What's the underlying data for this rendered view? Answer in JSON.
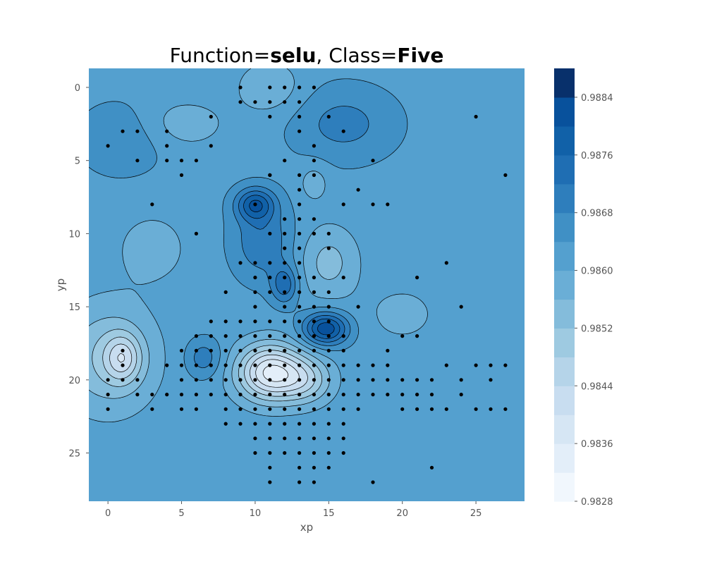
{
  "chart_data": {
    "type": "contour",
    "title": {
      "prefix": "Function=",
      "function": "selu",
      "separator": ", Class=",
      "class": "Five"
    },
    "xlabel": "xp",
    "ylabel": "yp",
    "xlim": [
      -1.3,
      28.3
    ],
    "ylim": [
      28.3,
      -1.3
    ],
    "x_ticks": [
      0,
      5,
      10,
      15,
      20,
      25
    ],
    "y_ticks": [
      0,
      5,
      10,
      15,
      20,
      25
    ],
    "grid": false,
    "colormap": "Blues",
    "colorbar": {
      "min": 0.9828,
      "max": 0.9888,
      "levels": [
        0.9828,
        0.9832,
        0.9836,
        0.984,
        0.9844,
        0.9848,
        0.9852,
        0.9856,
        0.986,
        0.9864,
        0.9868,
        0.9872,
        0.9876,
        0.988,
        0.9884,
        0.9888
      ],
      "tick_values": [
        0.9828,
        0.9836,
        0.9844,
        0.9852,
        0.986,
        0.9868,
        0.9876,
        0.9884
      ],
      "tick_labels": [
        "0.9828",
        "0.9836",
        "0.9844",
        "0.9852",
        "0.9860",
        "0.9868",
        "0.9876",
        "0.9884"
      ],
      "colors": [
        "#f1f7fd",
        "#e3eef9",
        "#d6e6f4",
        "#c8ddf0",
        "#b5d4e9",
        "#9ecae1",
        "#84bcdb",
        "#6aaed6",
        "#54a0cf",
        "#4090c5",
        "#2e7ebc",
        "#1f6eb3",
        "#1161a8",
        "#08519c",
        "#08306b"
      ]
    },
    "baseline_value": 0.98625,
    "features": [
      {
        "x": 11,
        "y": 0,
        "value": 0.98565,
        "sx": 2.2,
        "sy": 1.8
      },
      {
        "x": 5,
        "y": 2.5,
        "value": 0.98575,
        "sx": 3,
        "sy": 1.7
      },
      {
        "x": 16,
        "y": 2.5,
        "value": 0.98695,
        "sx": 3.5,
        "sy": 2.5
      },
      {
        "x": 0,
        "y": 18.5,
        "value": 0.98515,
        "sx": 3.2,
        "sy": 3.6
      },
      {
        "x": 1,
        "y": 18.5,
        "value": 0.98495,
        "sx": 1.2,
        "sy": 1.6
      },
      {
        "x": 11,
        "y": 19.5,
        "value": 0.98355,
        "sx": 2.2,
        "sy": 1.9
      },
      {
        "x": 13.5,
        "y": 20,
        "value": 0.98505,
        "sx": 1.8,
        "sy": 1.6
      },
      {
        "x": 14.8,
        "y": 16.5,
        "value": 0.98835,
        "sx": 1.5,
        "sy": 1.1
      },
      {
        "x": 10,
        "y": 8,
        "value": 0.98785,
        "sx": 1.3,
        "sy": 1.1
      },
      {
        "x": 10.5,
        "y": 10.5,
        "value": 0.98715,
        "sx": 2,
        "sy": 2.6
      },
      {
        "x": 12,
        "y": 13.5,
        "value": 0.98745,
        "sx": 0.9,
        "sy": 1.3
      },
      {
        "x": 15,
        "y": 12,
        "value": 0.98545,
        "sx": 2,
        "sy": 2.5
      },
      {
        "x": 14,
        "y": 6.5,
        "value": 0.98575,
        "sx": 1,
        "sy": 1.3
      },
      {
        "x": 6.5,
        "y": 18.5,
        "value": 0.98705,
        "sx": 1.2,
        "sy": 1.3
      },
      {
        "x": 20,
        "y": 15.5,
        "value": 0.98585,
        "sx": 2.5,
        "sy": 2
      },
      {
        "x": 3,
        "y": 11,
        "value": 0.9858,
        "sx": 2.5,
        "sy": 2.5
      },
      {
        "x": 1,
        "y": 3.5,
        "value": 0.98675,
        "sx": 3,
        "sy": 2.5
      }
    ],
    "points": [
      [
        0,
        20
      ],
      [
        0,
        21
      ],
      [
        0,
        22
      ],
      [
        1,
        20
      ],
      [
        1,
        18
      ],
      [
        1,
        19
      ],
      [
        2,
        20
      ],
      [
        2,
        21
      ],
      [
        3,
        21
      ],
      [
        3,
        22
      ],
      [
        4,
        19
      ],
      [
        4,
        21
      ],
      [
        5,
        18
      ],
      [
        5,
        19
      ],
      [
        5,
        20
      ],
      [
        5,
        21
      ],
      [
        5,
        22
      ],
      [
        6,
        17
      ],
      [
        6,
        18
      ],
      [
        6,
        19
      ],
      [
        6,
        20
      ],
      [
        6,
        21
      ],
      [
        6,
        22
      ],
      [
        7,
        16
      ],
      [
        7,
        17
      ],
      [
        7,
        18
      ],
      [
        7,
        19
      ],
      [
        7,
        20
      ],
      [
        7,
        21
      ],
      [
        8,
        16
      ],
      [
        8,
        17
      ],
      [
        8,
        18
      ],
      [
        8,
        19
      ],
      [
        8,
        20
      ],
      [
        8,
        21
      ],
      [
        8,
        22
      ],
      [
        8,
        23
      ],
      [
        9,
        16
      ],
      [
        9,
        17
      ],
      [
        9,
        18
      ],
      [
        9,
        19
      ],
      [
        9,
        20
      ],
      [
        9,
        21
      ],
      [
        9,
        22
      ],
      [
        9,
        23
      ],
      [
        10,
        16
      ],
      [
        10,
        17
      ],
      [
        10,
        18
      ],
      [
        10,
        19
      ],
      [
        10,
        20
      ],
      [
        10,
        21
      ],
      [
        10,
        22
      ],
      [
        10,
        23
      ],
      [
        10,
        24
      ],
      [
        10,
        25
      ],
      [
        11,
        16
      ],
      [
        11,
        17
      ],
      [
        11,
        18
      ],
      [
        11,
        19
      ],
      [
        11,
        20
      ],
      [
        11,
        21
      ],
      [
        11,
        22
      ],
      [
        11,
        23
      ],
      [
        11,
        24
      ],
      [
        11,
        25
      ],
      [
        11,
        26
      ],
      [
        11,
        27
      ],
      [
        12,
        16
      ],
      [
        12,
        17
      ],
      [
        12,
        18
      ],
      [
        12,
        19
      ],
      [
        12,
        20
      ],
      [
        12,
        21
      ],
      [
        12,
        22
      ],
      [
        12,
        23
      ],
      [
        12,
        24
      ],
      [
        12,
        25
      ],
      [
        13,
        16
      ],
      [
        13,
        17
      ],
      [
        13,
        18
      ],
      [
        13,
        19
      ],
      [
        13,
        20
      ],
      [
        13,
        21
      ],
      [
        13,
        22
      ],
      [
        13,
        23
      ],
      [
        13,
        24
      ],
      [
        13,
        25
      ],
      [
        13,
        26
      ],
      [
        13,
        27
      ],
      [
        14,
        16
      ],
      [
        14,
        17
      ],
      [
        14,
        18
      ],
      [
        14,
        19
      ],
      [
        14,
        20
      ],
      [
        14,
        21
      ],
      [
        14,
        22
      ],
      [
        14,
        23
      ],
      [
        14,
        24
      ],
      [
        14,
        25
      ],
      [
        14,
        26
      ],
      [
        14,
        27
      ],
      [
        15,
        16
      ],
      [
        15,
        17
      ],
      [
        15,
        18
      ],
      [
        15,
        19
      ],
      [
        15,
        20
      ],
      [
        15,
        21
      ],
      [
        15,
        22
      ],
      [
        15,
        23
      ],
      [
        15,
        24
      ],
      [
        15,
        25
      ],
      [
        15,
        26
      ],
      [
        16,
        17
      ],
      [
        16,
        18
      ],
      [
        16,
        19
      ],
      [
        16,
        20
      ],
      [
        16,
        21
      ],
      [
        16,
        22
      ],
      [
        16,
        23
      ],
      [
        16,
        24
      ],
      [
        16,
        25
      ],
      [
        17,
        19
      ],
      [
        17,
        20
      ],
      [
        17,
        21
      ],
      [
        17,
        22
      ],
      [
        18,
        19
      ],
      [
        18,
        20
      ],
      [
        18,
        21
      ],
      [
        18,
        27
      ],
      [
        19,
        18
      ],
      [
        19,
        19
      ],
      [
        19,
        20
      ],
      [
        19,
        21
      ],
      [
        20,
        17
      ],
      [
        20,
        20
      ],
      [
        20,
        21
      ],
      [
        20,
        22
      ],
      [
        21,
        17
      ],
      [
        21,
        20
      ],
      [
        21,
        21
      ],
      [
        21,
        22
      ],
      [
        22,
        20
      ],
      [
        22,
        21
      ],
      [
        22,
        22
      ],
      [
        22,
        26
      ],
      [
        23,
        19
      ],
      [
        23,
        22
      ],
      [
        24,
        20
      ],
      [
        24,
        21
      ],
      [
        25,
        19
      ],
      [
        25,
        22
      ],
      [
        26,
        19
      ],
      [
        26,
        20
      ],
      [
        26,
        22
      ],
      [
        27,
        19
      ],
      [
        27,
        22
      ],
      [
        9,
        0
      ],
      [
        11,
        0
      ],
      [
        12,
        0
      ],
      [
        13,
        0
      ],
      [
        14,
        0
      ],
      [
        9,
        1
      ],
      [
        10,
        1
      ],
      [
        11,
        1
      ],
      [
        12,
        1
      ],
      [
        13,
        1
      ],
      [
        11,
        2
      ],
      [
        13,
        2
      ],
      [
        15,
        2
      ],
      [
        13,
        3
      ],
      [
        14,
        4
      ],
      [
        16,
        3
      ],
      [
        7,
        2
      ],
      [
        4,
        3
      ],
      [
        25,
        2
      ],
      [
        1,
        3
      ],
      [
        2,
        3
      ],
      [
        0,
        4
      ],
      [
        4,
        4
      ],
      [
        7,
        4
      ],
      [
        2,
        5
      ],
      [
        4,
        5
      ],
      [
        5,
        5
      ],
      [
        6,
        5
      ],
      [
        14,
        5
      ],
      [
        18,
        5
      ],
      [
        12,
        5
      ],
      [
        11,
        6
      ],
      [
        13,
        6
      ],
      [
        27,
        6
      ],
      [
        5,
        6
      ],
      [
        13,
        7
      ],
      [
        17,
        7
      ],
      [
        3,
        8
      ],
      [
        10,
        8
      ],
      [
        13,
        8
      ],
      [
        16,
        8
      ],
      [
        18,
        8
      ],
      [
        19,
        8
      ],
      [
        12,
        9
      ],
      [
        13,
        9
      ],
      [
        14,
        9
      ],
      [
        11,
        10
      ],
      [
        12,
        10
      ],
      [
        13,
        10
      ],
      [
        14,
        10
      ],
      [
        15,
        10
      ],
      [
        6,
        10
      ],
      [
        12,
        11
      ],
      [
        13,
        11
      ],
      [
        15,
        11
      ],
      [
        10,
        12
      ],
      [
        11,
        12
      ],
      [
        12,
        12
      ],
      [
        13,
        12
      ],
      [
        9,
        12
      ],
      [
        14,
        13
      ],
      [
        10,
        13
      ],
      [
        11,
        13
      ],
      [
        12,
        13
      ],
      [
        13,
        13
      ],
      [
        16,
        13
      ],
      [
        21,
        13
      ],
      [
        23,
        12
      ],
      [
        8,
        14
      ],
      [
        10,
        14
      ],
      [
        11,
        14
      ],
      [
        12,
        14
      ],
      [
        13,
        14
      ],
      [
        14,
        14
      ],
      [
        15,
        14
      ],
      [
        10,
        15
      ],
      [
        12,
        15
      ],
      [
        13,
        15
      ],
      [
        14,
        15
      ],
      [
        15,
        15
      ],
      [
        17,
        15
      ],
      [
        24,
        15
      ],
      [
        11,
        6
      ],
      [
        14,
        6
      ]
    ]
  }
}
